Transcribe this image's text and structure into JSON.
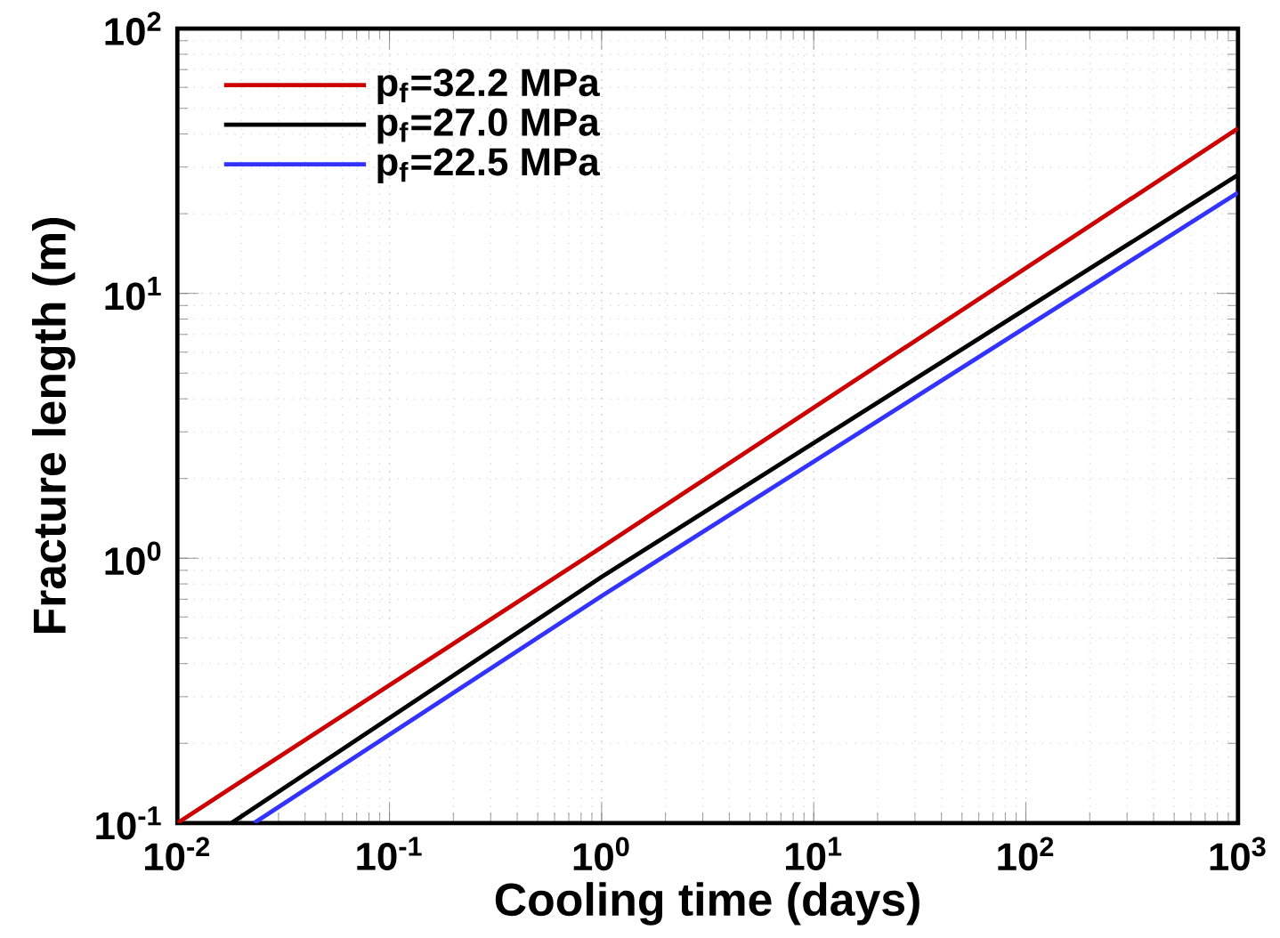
{
  "chart_data": {
    "type": "line",
    "xlabel": "Cooling time (days)",
    "ylabel": "Fracture length (m)",
    "log": "xy",
    "grid": true,
    "legend": "top left",
    "xlim": [
      0.01,
      1000
    ],
    "ylim": [
      0.1,
      100
    ],
    "xticks": [
      {
        "value": 0.01,
        "label": "10$^{-2}$"
      },
      {
        "value": 0.1,
        "label": "10$^{-1}$"
      },
      {
        "value": 1,
        "label": "10$^{0}$"
      },
      {
        "value": 10,
        "label": "10$^{1}$"
      },
      {
        "value": 100,
        "label": "10$^{2}$"
      },
      {
        "value": 1000,
        "label": "10$^{3}$"
      }
    ],
    "yticks": [
      {
        "value": 0.1,
        "label": "10$^{-1}$"
      },
      {
        "value": 1,
        "label": "10$^{0}$"
      },
      {
        "value": 10,
        "label": "10$^{1}$"
      },
      {
        "value": 100,
        "label": "10$^{2}$"
      }
    ],
    "series": [
      {
        "name": "p$_{f}$=32.2 MPa",
        "color": "#cc0000",
        "x": [
          0.01,
          1,
          1000
        ],
        "values": [
          0.1,
          1.1,
          42
        ]
      },
      {
        "name": "p$_{f}$=27.0 MPa",
        "color": "#000000",
        "x": [
          0.018,
          1,
          1000
        ],
        "values": [
          0.1,
          0.85,
          28
        ]
      },
      {
        "name": "p$_{f}$=22.5 MPa",
        "color": "#3333ff",
        "x": [
          0.023,
          1,
          1000
        ],
        "values": [
          0.1,
          0.72,
          24
        ]
      }
    ]
  }
}
